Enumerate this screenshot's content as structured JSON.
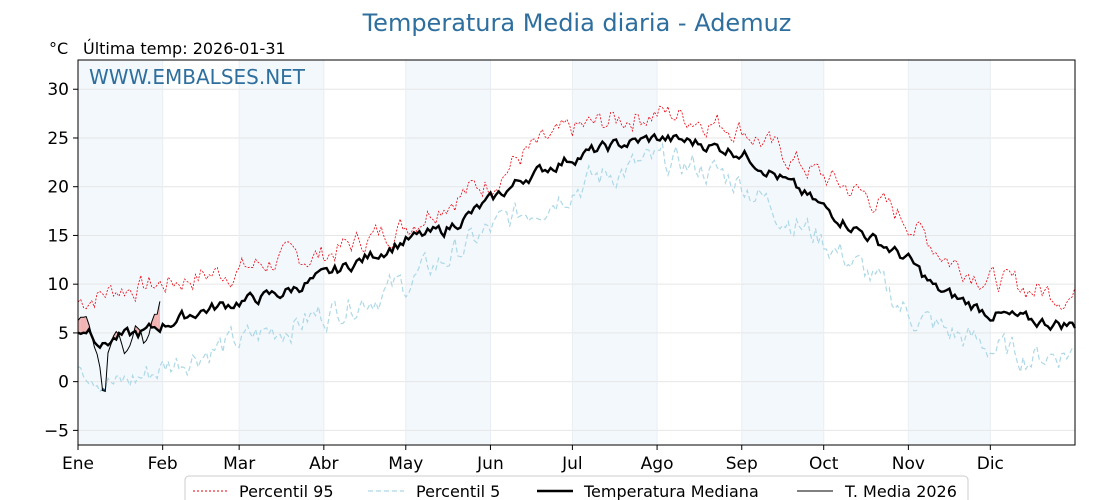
{
  "chart_data": {
    "type": "line",
    "title": "Temperatura Media diaria - Ademuz",
    "unit_label": "°C",
    "last_temp_label": "Última temp: 2026-01-31",
    "watermark": "WWW.EMBALSES.NET",
    "ylim": [
      -6.5,
      33
    ],
    "y_ticks": [
      -5,
      0,
      5,
      10,
      15,
      20,
      25,
      30
    ],
    "x_day_range": [
      1,
      366
    ],
    "months": [
      {
        "label": "Ene",
        "day": 1
      },
      {
        "label": "Feb",
        "day": 32
      },
      {
        "label": "Mar",
        "day": 60
      },
      {
        "label": "Abr",
        "day": 91
      },
      {
        "label": "May",
        "day": 121
      },
      {
        "label": "Jun",
        "day": 152
      },
      {
        "label": "Jul",
        "day": 182
      },
      {
        "label": "Ago",
        "day": 213
      },
      {
        "label": "Sep",
        "day": 244
      },
      {
        "label": "Oct",
        "day": 274
      },
      {
        "label": "Nov",
        "day": 305
      },
      {
        "label": "Dic",
        "day": 335
      }
    ],
    "grid": true,
    "legend_position": "bottom-center",
    "series_styles": {
      "p95": "#e8000b",
      "p5": "#add8e6",
      "median": "#000000",
      "current": "#000000",
      "above_fill": "#f2b3b3",
      "below_fill": "#1f5a8a",
      "month_shade": "#f3f8fd"
    },
    "series": [
      {
        "key": "p95",
        "name": "Percentil 95",
        "points": [
          [
            1,
            8.2
          ],
          [
            15,
            9.5
          ],
          [
            32,
            10.0
          ],
          [
            45,
            10.8
          ],
          [
            60,
            11.5
          ],
          [
            75,
            12.5
          ],
          [
            91,
            13.0
          ],
          [
            105,
            14.5
          ],
          [
            121,
            16.0
          ],
          [
            135,
            18.5
          ],
          [
            152,
            20.5
          ],
          [
            165,
            23.5
          ],
          [
            182,
            25.8
          ],
          [
            197,
            26.8
          ],
          [
            213,
            27.6
          ],
          [
            228,
            27.0
          ],
          [
            244,
            26.0
          ],
          [
            255,
            24.0
          ],
          [
            274,
            21.0
          ],
          [
            290,
            19.0
          ],
          [
            305,
            16.5
          ],
          [
            320,
            12.5
          ],
          [
            335,
            10.5
          ],
          [
            350,
            9.5
          ],
          [
            366,
            8.8
          ]
        ]
      },
      {
        "key": "p5",
        "name": "Percentil 5",
        "points": [
          [
            1,
            2.6
          ],
          [
            15,
            -0.5
          ],
          [
            25,
            0.6
          ],
          [
            32,
            1.5
          ],
          [
            45,
            3.0
          ],
          [
            60,
            4.0
          ],
          [
            75,
            5.5
          ],
          [
            91,
            7.0
          ],
          [
            105,
            8.5
          ],
          [
            121,
            10.0
          ],
          [
            135,
            12.5
          ],
          [
            152,
            15.5
          ],
          [
            165,
            17.5
          ],
          [
            182,
            20.0
          ],
          [
            197,
            21.5
          ],
          [
            213,
            22.5
          ],
          [
            228,
            22.0
          ],
          [
            244,
            20.5
          ],
          [
            255,
            18.0
          ],
          [
            274,
            14.5
          ],
          [
            290,
            11.0
          ],
          [
            305,
            7.0
          ],
          [
            320,
            5.0
          ],
          [
            335,
            3.5
          ],
          [
            350,
            2.5
          ],
          [
            366,
            3.2
          ]
        ]
      },
      {
        "key": "median",
        "name": "Temperatura Mediana",
        "points": [
          [
            1,
            5.3
          ],
          [
            5,
            5.5
          ],
          [
            10,
            3.8
          ],
          [
            15,
            4.5
          ],
          [
            25,
            5.0
          ],
          [
            32,
            5.8
          ],
          [
            45,
            7.2
          ],
          [
            60,
            8.2
          ],
          [
            75,
            9.0
          ],
          [
            91,
            10.8
          ],
          [
            105,
            12.5
          ],
          [
            121,
            14.5
          ],
          [
            135,
            15.5
          ],
          [
            152,
            18.5
          ],
          [
            165,
            21.0
          ],
          [
            182,
            23.0
          ],
          [
            197,
            24.2
          ],
          [
            213,
            25.0
          ],
          [
            228,
            24.5
          ],
          [
            244,
            23.5
          ],
          [
            255,
            21.5
          ],
          [
            274,
            17.8
          ],
          [
            290,
            15.0
          ],
          [
            305,
            12.5
          ],
          [
            315,
            9.5
          ],
          [
            335,
            7.0
          ],
          [
            350,
            6.2
          ],
          [
            366,
            5.8
          ]
        ]
      },
      {
        "key": "current",
        "name": "T. Media 2026",
        "points": [
          [
            1,
            6.5
          ],
          [
            3,
            6.8
          ],
          [
            5,
            6.0
          ],
          [
            7,
            4.0
          ],
          [
            9,
            1.5
          ],
          [
            10,
            -0.8
          ],
          [
            11,
            -0.5
          ],
          [
            12,
            3.5
          ],
          [
            14,
            5.5
          ],
          [
            16,
            4.8
          ],
          [
            18,
            3.2
          ],
          [
            20,
            4.0
          ],
          [
            22,
            5.8
          ],
          [
            24,
            5.0
          ],
          [
            25,
            4.2
          ],
          [
            27,
            4.8
          ],
          [
            28,
            6.5
          ],
          [
            29,
            7.5
          ],
          [
            30,
            6.9
          ],
          [
            31,
            7.8
          ]
        ]
      }
    ]
  }
}
